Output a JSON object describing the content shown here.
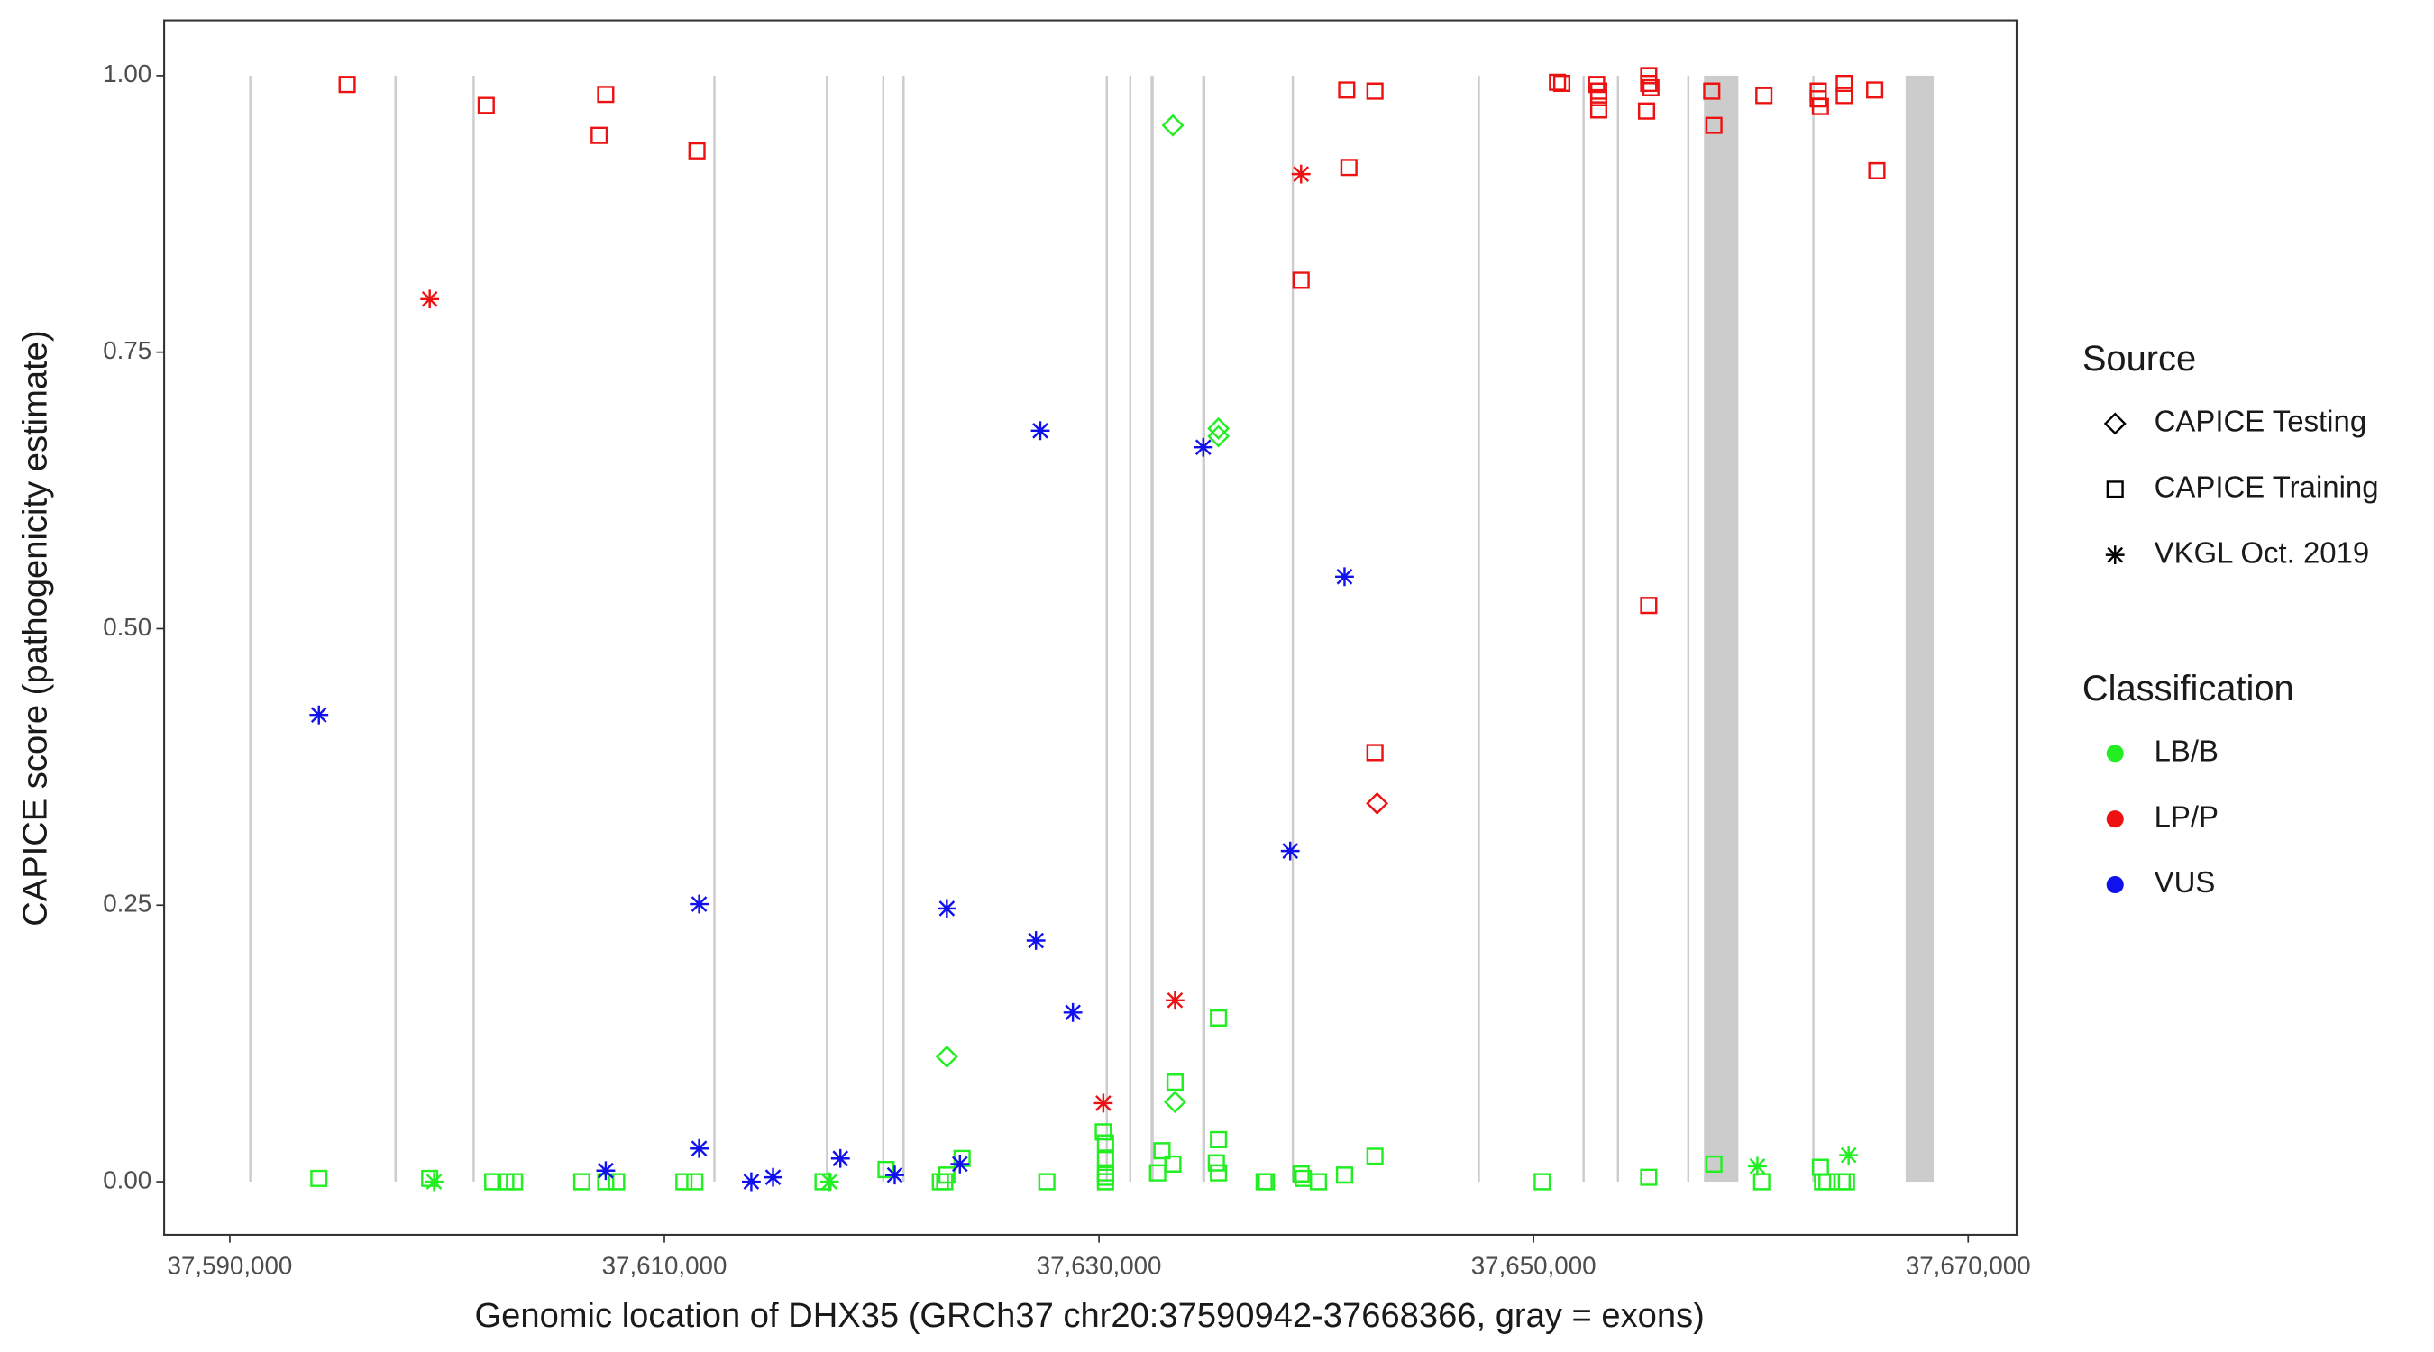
{
  "chart_data": {
    "type": "scatter",
    "x_label": "Genomic location of DHX35 (GRCh37 chr20:37590942-37668366, gray = exons)",
    "y_label": "CAPICE score (pathogenicity estimate)",
    "xlim": [
      37586978,
      37672230
    ],
    "ylim": [
      -0.048,
      1.05
    ],
    "xticks": [
      {
        "value": 37590000,
        "label": "37,590,000"
      },
      {
        "value": 37610000,
        "label": "37,610,000"
      },
      {
        "value": 37630000,
        "label": "37,630,000"
      },
      {
        "value": 37650000,
        "label": "37,650,000"
      },
      {
        "value": 37670000,
        "label": "37,670,000"
      }
    ],
    "yticks": [
      {
        "value": 0,
        "label": "0.00"
      },
      {
        "value": 0.25,
        "label": "0.25"
      },
      {
        "value": 0.5,
        "label": "0.50"
      },
      {
        "value": 0.75,
        "label": "0.75"
      },
      {
        "value": 1,
        "label": "1.00"
      }
    ],
    "exon_color": "#cccccc",
    "exons": [
      [
        37590942,
        37590942
      ],
      [
        37597626,
        37597626
      ],
      [
        37601223,
        37601223
      ],
      [
        37612302,
        37612302
      ],
      [
        37617482,
        37617482
      ],
      [
        37620072,
        37620072
      ],
      [
        37621007,
        37621007
      ],
      [
        37630360,
        37630360
      ],
      [
        37631439,
        37631439
      ],
      [
        37632374,
        37632518
      ],
      [
        37634750,
        37634890
      ],
      [
        37638921,
        37638921
      ],
      [
        37647482,
        37647482
      ],
      [
        37652302,
        37652302
      ],
      [
        37653885,
        37653885
      ],
      [
        37657122,
        37657122
      ],
      [
        37657842,
        37659424
      ],
      [
        37662878,
        37662878
      ],
      [
        37667122,
        37668417
      ]
    ],
    "legends": [
      {
        "title": "Source",
        "items": [
          {
            "label": "CAPICE Testing",
            "shape": "diamond"
          },
          {
            "label": "CAPICE Training",
            "shape": "square"
          },
          {
            "label": "VKGL Oct. 2019",
            "shape": "asterisk"
          }
        ]
      },
      {
        "title": "Classification",
        "items": [
          {
            "label": "LB/B",
            "color": "#22ee22"
          },
          {
            "label": "LP/P",
            "color": "#ee1111"
          },
          {
            "label": "VUS",
            "color": "#1111ee"
          }
        ]
      }
    ],
    "series": [
      {
        "source": 1,
        "classification": 1,
        "x": [
          37595400,
          37601800,
          37607000,
          37607300,
          37611500,
          37639300,
          37641400,
          37641500,
          37642700,
          37642700,
          37651100,
          37651300,
          37652900,
          37653000,
          37653000,
          37653000,
          37655200,
          37655300,
          37655300,
          37655400,
          37655300,
          37658200,
          37658300,
          37660600,
          37663100,
          37663100,
          37663200,
          37664300,
          37664300,
          37665700,
          37665800
        ],
        "y": [
          0.992,
          0.973,
          0.946,
          0.983,
          0.932,
          0.815,
          0.987,
          0.917,
          0.986,
          0.388,
          0.994,
          0.993,
          0.992,
          0.986,
          0.98,
          0.969,
          0.968,
          1.0,
          0.993,
          0.989,
          0.521,
          0.986,
          0.955,
          0.982,
          0.986,
          0.979,
          0.972,
          0.993,
          0.982,
          0.987,
          0.914
        ]
      },
      {
        "source": 1,
        "classification": 0,
        "x": [
          37594100,
          37599200,
          37602100,
          37602700,
          37603100,
          37606200,
          37607300,
          37607800,
          37610900,
          37611400,
          37617300,
          37620200,
          37622700,
          37622900,
          37623000,
          37623700,
          37627600,
          37630200,
          37630300,
          37630300,
          37630300,
          37630300,
          37630300,
          37632700,
          37632900,
          37633400,
          37633500,
          37635400,
          37635500,
          37635500,
          37635500,
          37637600,
          37637700,
          37639300,
          37639400,
          37640100,
          37641300,
          37642700,
          37650400,
          37655300,
          37658300,
          37660500,
          37663200,
          37663300,
          37663500,
          37664200,
          37664400
        ],
        "y": [
          0.003,
          0.003,
          0,
          0,
          0,
          0,
          0,
          0,
          0,
          0,
          0,
          0.011,
          0,
          0,
          0.006,
          0.021,
          0,
          0.045,
          0.035,
          0.02,
          0.008,
          0.004,
          0,
          0.008,
          0.028,
          0.016,
          0.09,
          0.017,
          0.038,
          0.008,
          0.148,
          0,
          0,
          0.007,
          0.003,
          0,
          0.006,
          0.023,
          0,
          0.004,
          0.016,
          0,
          0.013,
          0,
          0,
          0,
          0
        ]
      },
      {
        "source": 0,
        "classification": 0,
        "x": [
          37623000,
          37633400,
          37633500,
          37635500,
          37635500
        ],
        "y": [
          0.113,
          0.955,
          0.072,
          0.681,
          0.674
        ]
      },
      {
        "source": 0,
        "classification": 1,
        "x": [
          37642800
        ],
        "y": [
          0.342
        ]
      },
      {
        "source": 2,
        "classification": 2,
        "x": [
          37594100,
          37607300,
          37611600,
          37611600,
          37614000,
          37615000,
          37618100,
          37620600,
          37623000,
          37623600,
          37627100,
          37627300,
          37628800,
          37634800,
          37638800,
          37641300
        ],
        "y": [
          0.422,
          0.01,
          0.251,
          0.03,
          0,
          0.004,
          0.021,
          0.006,
          0.247,
          0.016,
          0.218,
          0.679,
          0.153,
          0.664,
          0.299,
          0.547
        ]
      },
      {
        "source": 2,
        "classification": 1,
        "x": [
          37599200,
          37630200,
          37633500,
          37639300
        ],
        "y": [
          0.798,
          0.071,
          0.164,
          0.911
        ]
      },
      {
        "source": 2,
        "classification": 0,
        "x": [
          37599400,
          37617600,
          37660300,
          37664500
        ],
        "y": [
          0,
          0,
          0.014,
          0.024
        ]
      }
    ]
  }
}
